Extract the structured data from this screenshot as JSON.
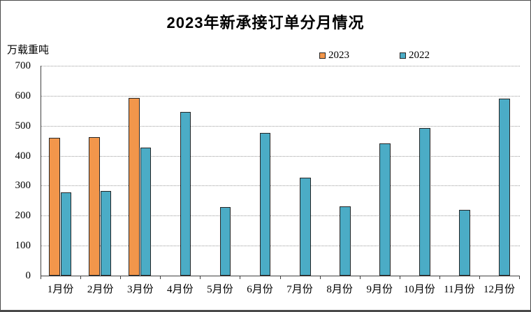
{
  "chart_data": {
    "type": "bar",
    "title": "2023年新承接订单分月情况",
    "ylabel": "万载重吨",
    "xlabel": "",
    "ylim": [
      0,
      700
    ],
    "ytick_step": 100,
    "grid": "horizontal-dotted",
    "legend_position": "top",
    "categories": [
      "1月份",
      "2月份",
      "3月份",
      "4月份",
      "5月份",
      "6月份",
      "7月份",
      "8月份",
      "9月份",
      "10月份",
      "11月份",
      "12月份"
    ],
    "series": [
      {
        "name": "2023",
        "color": "#F2964B",
        "values": [
          460,
          462,
          593,
          null,
          null,
          null,
          null,
          null,
          null,
          null,
          null,
          null
        ]
      },
      {
        "name": "2022",
        "color": "#4BACC6",
        "values": [
          278,
          282,
          427,
          546,
          228,
          476,
          327,
          231,
          441,
          492,
          219,
          590
        ]
      }
    ],
    "colors": {
      "bar_border": "#262626",
      "gridline": "#9c9c9c",
      "axis": "#404040"
    }
  }
}
